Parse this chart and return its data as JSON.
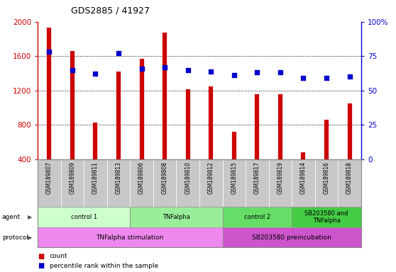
{
  "title": "GDS2885 / 41927",
  "samples": [
    "GSM189807",
    "GSM189809",
    "GSM189811",
    "GSM189813",
    "GSM189806",
    "GSM189808",
    "GSM189810",
    "GSM189812",
    "GSM189815",
    "GSM189817",
    "GSM189819",
    "GSM189814",
    "GSM189816",
    "GSM189818"
  ],
  "counts": [
    1930,
    1660,
    830,
    1420,
    1570,
    1870,
    1210,
    1250,
    720,
    1160,
    1160,
    480,
    860,
    1050
  ],
  "percentiles": [
    78,
    65,
    62,
    77,
    66,
    67,
    65,
    64,
    61,
    63,
    63,
    59,
    59,
    60
  ],
  "ymin": 400,
  "ymax": 2000,
  "yticks": [
    400,
    800,
    1200,
    1600,
    2000
  ],
  "right_yticks": [
    0,
    25,
    50,
    75,
    100
  ],
  "bar_color": "#cc0000",
  "dot_color": "#0000cc",
  "agent_groups": [
    {
      "label": "control 1",
      "start": 0,
      "end": 3,
      "color": "#ccffcc"
    },
    {
      "label": "TNFalpha",
      "start": 4,
      "end": 7,
      "color": "#99ee99"
    },
    {
      "label": "control 2",
      "start": 8,
      "end": 10,
      "color": "#66dd66"
    },
    {
      "label": "SB203580 and\nTNFalpha",
      "start": 11,
      "end": 13,
      "color": "#44cc44"
    }
  ],
  "protocol_groups": [
    {
      "label": "TNFalpha stimulation",
      "start": 0,
      "end": 7,
      "color": "#ee88ee"
    },
    {
      "label": "SB203580 preincubation",
      "start": 8,
      "end": 13,
      "color": "#cc55cc"
    }
  ],
  "legend_count_label": "count",
  "legend_pct_label": "percentile rank within the sample",
  "bar_color_hex": "#cc0000",
  "dot_color_hex": "#0000cc"
}
